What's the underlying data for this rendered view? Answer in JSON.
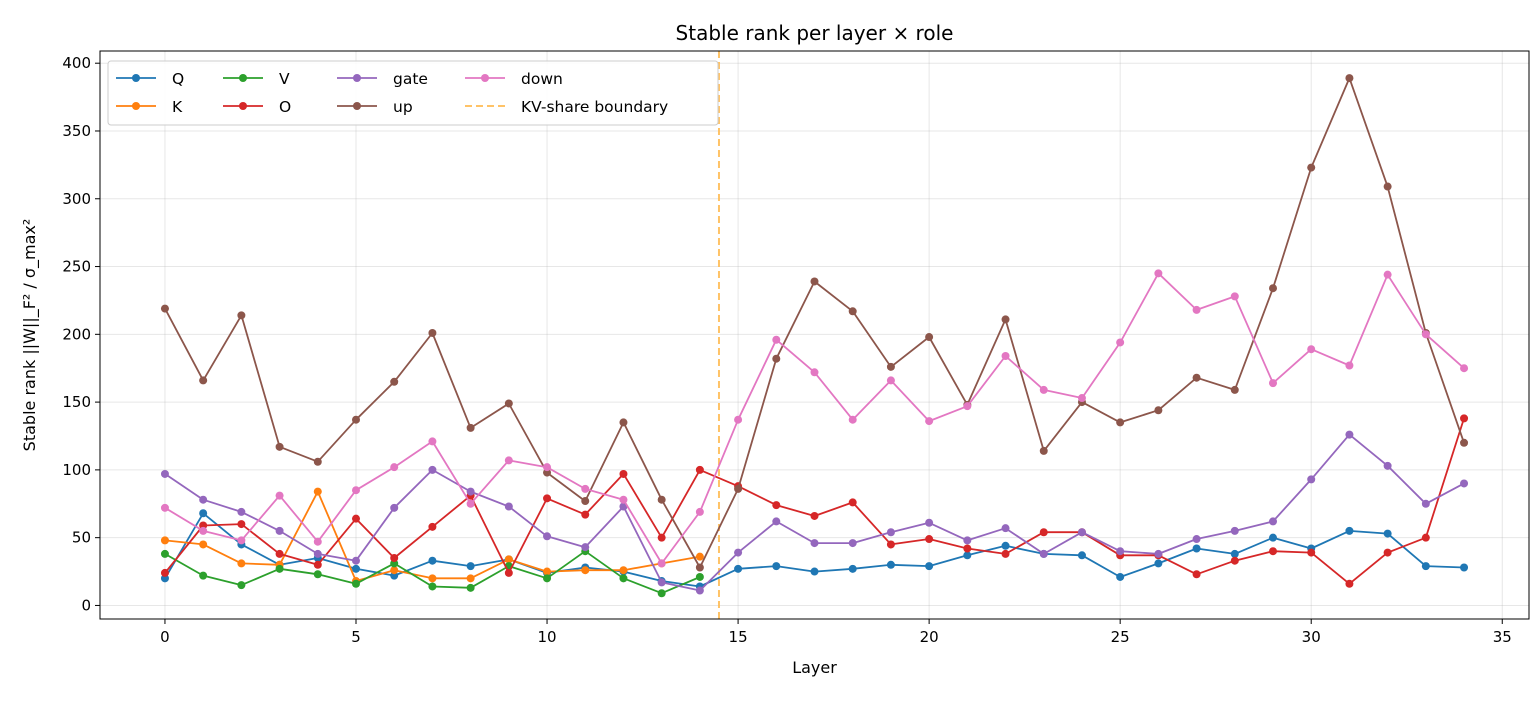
{
  "chart_data": {
    "type": "line",
    "title": "Stable rank per layer × role",
    "xlabel": "Layer",
    "ylabel": "Stable rank ||W||_F² / σ_max²",
    "xlim": [
      -1.7,
      35.7
    ],
    "ylim": [
      -10,
      409
    ],
    "xticks": [
      0,
      5,
      10,
      15,
      20,
      25,
      30,
      35
    ],
    "yticks": [
      0,
      50,
      100,
      150,
      200,
      250,
      300,
      350,
      400
    ],
    "grid": true,
    "legend_position": "top-left",
    "series": [
      {
        "name": "Q",
        "color": "#1f77b4",
        "x": [
          0,
          1,
          2,
          3,
          4,
          5,
          6,
          7,
          8,
          9,
          10,
          11,
          12,
          13,
          14,
          15,
          16,
          17,
          18,
          19,
          20,
          21,
          22,
          23,
          24,
          25,
          26,
          27,
          28,
          29,
          30,
          31,
          32,
          33,
          34
        ],
        "values": [
          20,
          68,
          45,
          30,
          35,
          27,
          22,
          33,
          29,
          34,
          24,
          28,
          25,
          18,
          14,
          27,
          29,
          25,
          27,
          30,
          29,
          37,
          44,
          38,
          37,
          21,
          31,
          42,
          38,
          50,
          42,
          55,
          53,
          29,
          28
        ]
      },
      {
        "name": "K",
        "color": "#ff7f0e",
        "x": [
          0,
          1,
          2,
          3,
          4,
          5,
          6,
          7,
          8,
          9,
          10,
          11,
          12,
          13,
          14
        ],
        "values": [
          48,
          45,
          31,
          30,
          84,
          18,
          26,
          20,
          20,
          34,
          25,
          26,
          26,
          31,
          36
        ]
      },
      {
        "name": "V",
        "color": "#2ca02c",
        "x": [
          0,
          1,
          2,
          3,
          4,
          5,
          6,
          7,
          8,
          9,
          10,
          11,
          12,
          13,
          14
        ],
        "values": [
          38,
          22,
          15,
          27,
          23,
          16,
          31,
          14,
          13,
          29,
          20,
          40,
          20,
          9,
          21
        ]
      },
      {
        "name": "O",
        "color": "#d62728",
        "x": [
          0,
          1,
          2,
          3,
          4,
          5,
          6,
          7,
          8,
          9,
          10,
          11,
          12,
          13,
          14,
          15,
          16,
          17,
          18,
          19,
          20,
          21,
          22,
          23,
          24,
          25,
          26,
          27,
          28,
          29,
          30,
          31,
          32,
          33,
          34
        ],
        "values": [
          24,
          59,
          60,
          38,
          30,
          64,
          35,
          58,
          81,
          24,
          79,
          67,
          97,
          50,
          100,
          88,
          74,
          66,
          76,
          45,
          49,
          42,
          38,
          54,
          54,
          37,
          37,
          23,
          33,
          40,
          39,
          16,
          39,
          50,
          138
        ]
      },
      {
        "name": "gate",
        "color": "#9467bd",
        "x": [
          0,
          1,
          2,
          3,
          4,
          5,
          6,
          7,
          8,
          9,
          10,
          11,
          12,
          13,
          14,
          15,
          16,
          17,
          18,
          19,
          20,
          21,
          22,
          23,
          24,
          25,
          26,
          27,
          28,
          29,
          30,
          31,
          32,
          33,
          34
        ],
        "values": [
          97,
          78,
          69,
          55,
          38,
          33,
          72,
          100,
          84,
          73,
          51,
          43,
          73,
          17,
          11,
          39,
          62,
          46,
          46,
          54,
          61,
          48,
          57,
          38,
          54,
          40,
          38,
          49,
          55,
          62,
          93,
          126,
          103,
          75,
          90
        ]
      },
      {
        "name": "up",
        "color": "#8c564b",
        "x": [
          0,
          1,
          2,
          3,
          4,
          5,
          6,
          7,
          8,
          9,
          10,
          11,
          12,
          13,
          14,
          15,
          16,
          17,
          18,
          19,
          20,
          21,
          22,
          23,
          24,
          25,
          26,
          27,
          28,
          29,
          30,
          31,
          32,
          33,
          34
        ],
        "values": [
          219,
          166,
          214,
          117,
          106,
          137,
          165,
          201,
          131,
          149,
          98,
          77,
          135,
          78,
          28,
          86,
          182,
          239,
          217,
          176,
          198,
          148,
          211,
          114,
          150,
          135,
          144,
          168,
          159,
          234,
          323,
          389,
          309,
          201,
          120
        ]
      },
      {
        "name": "down",
        "color": "#e377c2",
        "x": [
          0,
          1,
          2,
          3,
          4,
          5,
          6,
          7,
          8,
          9,
          10,
          11,
          12,
          13,
          14,
          15,
          16,
          17,
          18,
          19,
          20,
          21,
          22,
          23,
          24,
          25,
          26,
          27,
          28,
          29,
          30,
          31,
          32,
          33,
          34
        ],
        "values": [
          72,
          55,
          48,
          81,
          47,
          85,
          102,
          121,
          75,
          107,
          102,
          86,
          78,
          31,
          69,
          137,
          196,
          172,
          137,
          166,
          136,
          147,
          184,
          159,
          153,
          194,
          245,
          218,
          228,
          164,
          189,
          177,
          244,
          200,
          175
        ]
      }
    ],
    "reference_lines": [
      {
        "name": "KV-share boundary",
        "axis": "x",
        "value": 14.5,
        "color": "#ffbc57",
        "style": "dashed"
      }
    ]
  }
}
